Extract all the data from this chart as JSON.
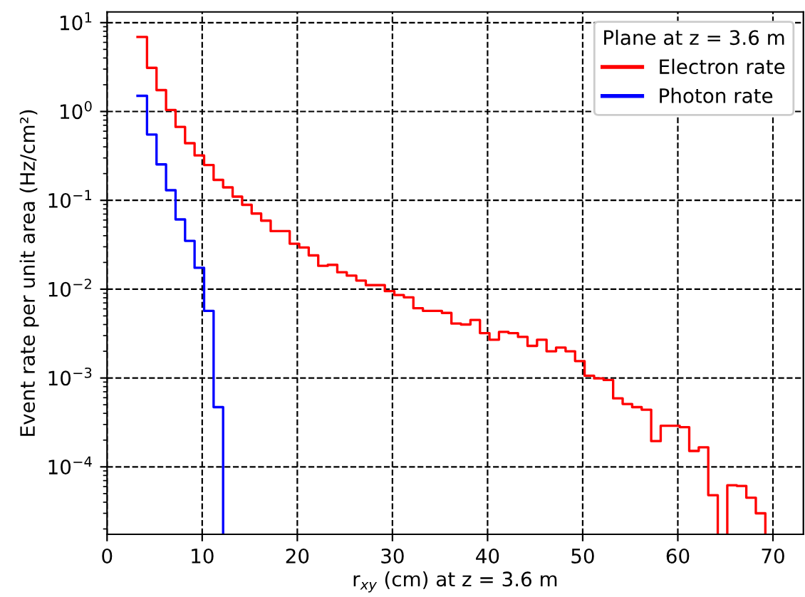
{
  "chart_data": {
    "type": "histogram",
    "xlabel": "r$_{xy}$ (cm) at z = 3.6 m",
    "ylabel": "Event rate per unit area (Hz/cm²)",
    "legend_title": "Plane at z = 3.6 m",
    "legend": "top right",
    "grid": true,
    "log": "y",
    "line_style": "dashed",
    "bins": [
      3.2,
      4.2,
      5.2,
      6.2,
      7.2,
      8.2,
      9.2,
      10.2,
      11.2,
      12.2,
      13.2,
      14.2,
      15.2,
      16.2,
      17.2,
      18.2,
      19.2,
      20.2,
      21.2,
      22.2,
      23.2,
      24.2,
      25.2,
      26.2,
      27.2,
      28.2,
      29.2,
      30.2,
      31.2,
      32.2,
      33.2,
      34.2,
      35.2,
      36.2,
      37.2,
      38.2,
      39.2,
      40.2,
      41.2,
      42.2,
      43.2,
      44.2,
      45.2,
      46.2,
      47.2,
      48.2,
      49.2,
      50.2,
      51.2,
      52.2,
      53.2,
      54.2,
      55.2,
      56.2,
      57.2,
      58.2,
      59.2,
      60.2,
      61.2,
      62.2,
      63.2,
      64.2,
      65.2,
      66.2,
      67.2,
      68.2,
      69.2
    ],
    "series": [
      {
        "name": "Electron rate",
        "color": "#ff0000",
        "values": [
          6.9,
          3.1,
          1.74,
          1.04,
          0.67,
          0.44,
          0.32,
          0.25,
          0.17,
          0.14,
          0.11,
          0.089,
          0.071,
          0.059,
          0.045,
          0.045,
          0.0325,
          0.0295,
          0.024,
          0.0183,
          0.0188,
          0.0155,
          0.0142,
          0.0125,
          0.0111,
          0.0111,
          0.0095,
          0.0086,
          0.0081,
          0.0061,
          0.0057,
          0.0057,
          0.0054,
          0.0041,
          0.004,
          0.0045,
          0.0032,
          0.0027,
          0.0033,
          0.0032,
          0.0029,
          0.0023,
          0.0027,
          0.002,
          0.0022,
          0.002,
          0.00155,
          0.00106,
          0.00099,
          0.00095,
          0.00059,
          0.00051,
          0.00047,
          0.00044,
          0.000195,
          0.00029,
          0.00029,
          0.00028,
          0.000151,
          0.000166,
          4.8e-05,
          null,
          6.2e-05,
          6.1e-05,
          4.5e-05,
          3e-05
        ]
      },
      {
        "name": "Photon rate",
        "color": "#0000ff",
        "bins": [
          3.2,
          4.2,
          5.2,
          6.2,
          7.2,
          8.2,
          9.2,
          10.2,
          11.2,
          12.2
        ],
        "values": [
          1.5,
          0.55,
          0.254,
          0.13,
          0.061,
          0.035,
          0.0174,
          0.0057,
          0.00047
        ]
      }
    ],
    "xlim": [
      0,
      73.2
    ],
    "ylim": [
      1.74e-05,
      13.2
    ],
    "xticks": [
      0,
      10,
      20,
      30,
      40,
      50,
      60,
      70
    ],
    "yticks": [
      {
        "value": 0.0001,
        "label": "10$^{−4}$"
      },
      {
        "value": 0.001,
        "label": "10$^{−3}$"
      },
      {
        "value": 0.01,
        "label": "10$^{−2}$"
      },
      {
        "value": 0.1,
        "label": "10$^{−1}$"
      },
      {
        "value": 1,
        "label": "10$^{0}$"
      },
      {
        "value": 10,
        "label": "10$^{1}$"
      }
    ]
  }
}
